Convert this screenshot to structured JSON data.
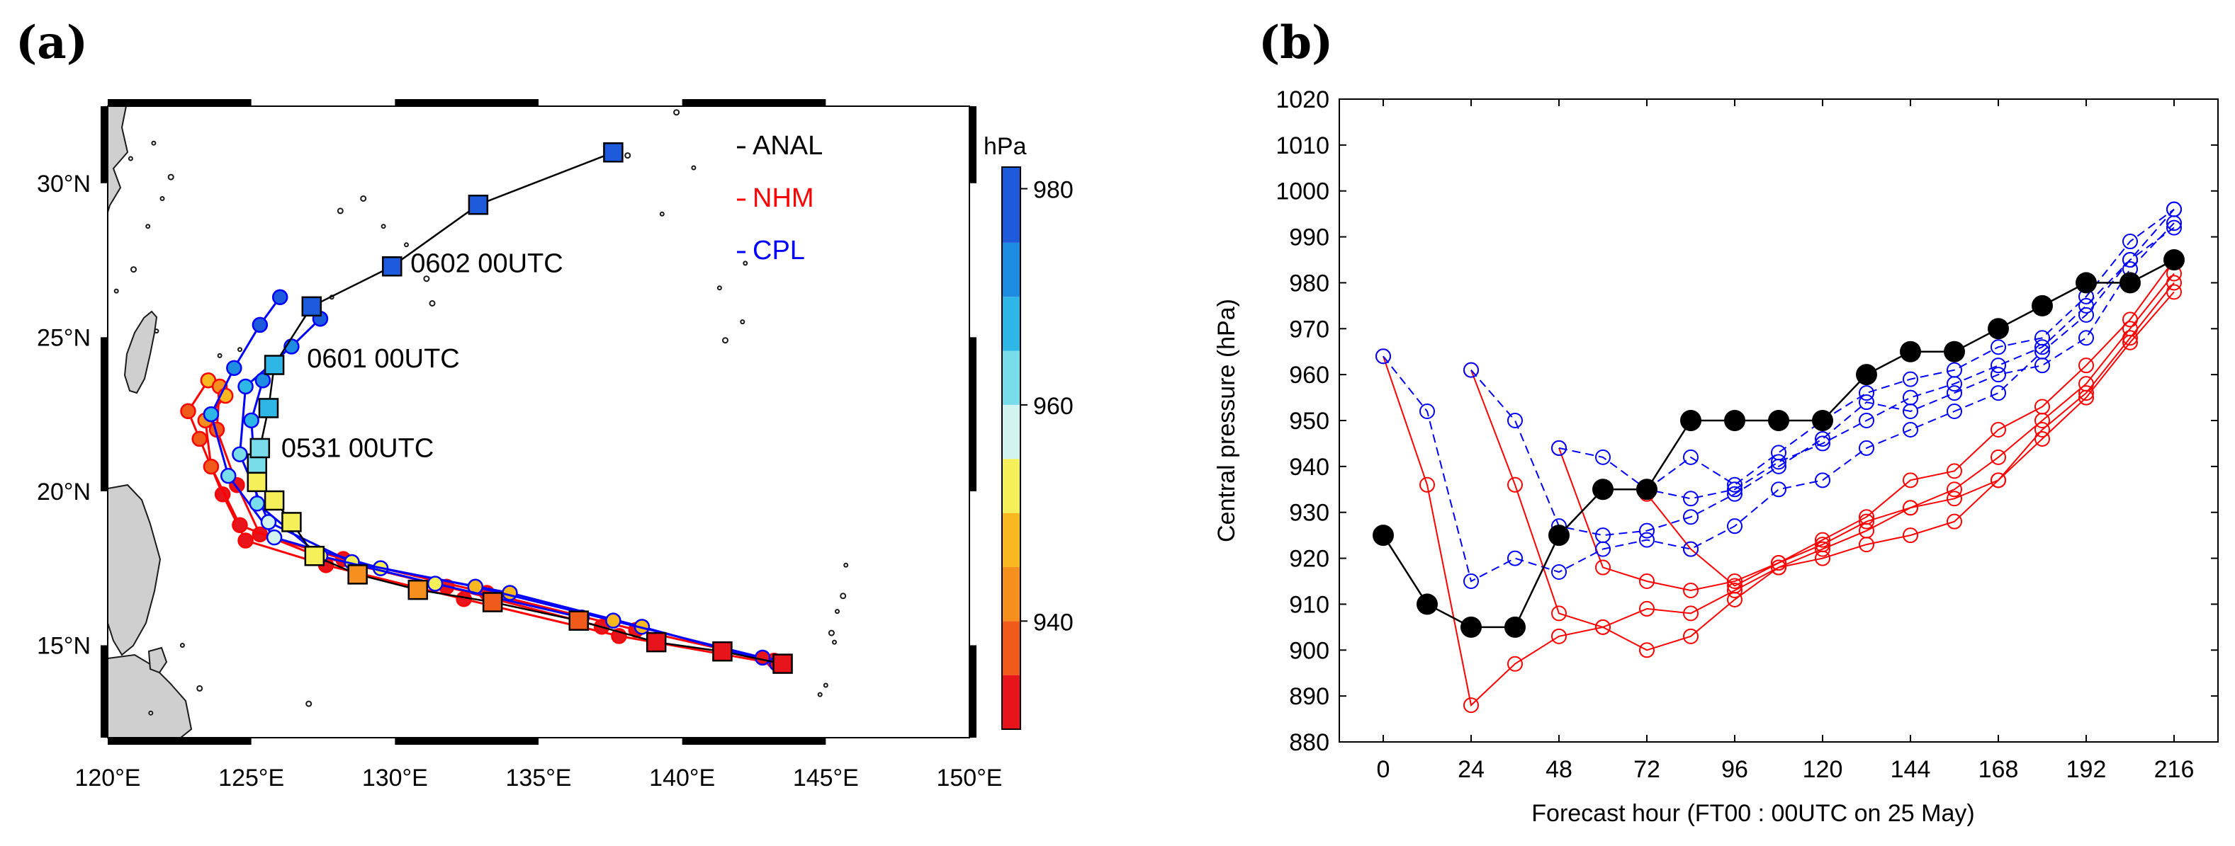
{
  "chart_data": [
    {
      "panel": "(a)",
      "type": "scatter",
      "title": "",
      "xlabel": "",
      "ylabel": "",
      "xlim": [
        120,
        150
      ],
      "ylim": [
        12,
        32.5
      ],
      "x_ticks": [
        {
          "value": 120,
          "label": "120°E"
        },
        {
          "value": 125,
          "label": "125°E"
        },
        {
          "value": 130,
          "label": "130°E"
        },
        {
          "value": 135,
          "label": "135°E"
        },
        {
          "value": 140,
          "label": "140°E"
        },
        {
          "value": 145,
          "label": "145°E"
        },
        {
          "value": 150,
          "label": "150°E"
        }
      ],
      "y_ticks": [
        {
          "value": 15,
          "label": "15°N"
        },
        {
          "value": 20,
          "label": "20°N"
        },
        {
          "value": 25,
          "label": "25°N"
        },
        {
          "value": 30,
          "label": "30°N"
        }
      ],
      "legend": {
        "position": "top-right",
        "items": [
          {
            "label": "ANAL",
            "color": "#000000"
          },
          {
            "label": "NHM",
            "color": "#ff0000"
          },
          {
            "label": "CPL",
            "color": "#0000ff"
          }
        ]
      },
      "colorbar": {
        "title": "hPa",
        "range": [
          930,
          982
        ],
        "ticks": [
          940,
          960,
          980
        ],
        "bins": [
          {
            "from": 930,
            "to": 935,
            "color": "#e8141c"
          },
          {
            "from": 935,
            "to": 940,
            "color": "#f05a1a"
          },
          {
            "from": 940,
            "to": 945,
            "color": "#f5901e"
          },
          {
            "from": 945,
            "to": 950,
            "color": "#fab820"
          },
          {
            "from": 950,
            "to": 955,
            "color": "#f5f05a"
          },
          {
            "from": 955,
            "to": 960,
            "color": "#d2f4f0"
          },
          {
            "from": 960,
            "to": 965,
            "color": "#78dceb"
          },
          {
            "from": 965,
            "to": 970,
            "color": "#2eb6e6"
          },
          {
            "from": 970,
            "to": 975,
            "color": "#1e8ce0"
          },
          {
            "from": 975,
            "to": 982,
            "color": "#1e5adc"
          }
        ]
      },
      "annotations": [
        {
          "text": "0602 00UTC",
          "lon": 129.8,
          "lat": 27.3
        },
        {
          "text": "0601 00UTC",
          "lon": 126.2,
          "lat": 24.2
        },
        {
          "text": "0531 00UTC",
          "lon": 125.3,
          "lat": 21.3
        }
      ],
      "series": [
        {
          "name": "ANAL",
          "line_color": "#000000",
          "marker": "square",
          "points": [
            {
              "lon": 143.5,
              "lat": 14.4,
              "p": 932
            },
            {
              "lon": 141.4,
              "lat": 14.8,
              "p": 932
            },
            {
              "lon": 139.1,
              "lat": 15.1,
              "p": 932
            },
            {
              "lon": 136.4,
              "lat": 15.8,
              "p": 935
            },
            {
              "lon": 133.4,
              "lat": 16.4,
              "p": 935
            },
            {
              "lon": 130.8,
              "lat": 16.8,
              "p": 940
            },
            {
              "lon": 128.7,
              "lat": 17.3,
              "p": 942
            },
            {
              "lon": 127.2,
              "lat": 17.9,
              "p": 950
            },
            {
              "lon": 126.4,
              "lat": 19.0,
              "p": 950
            },
            {
              "lon": 125.8,
              "lat": 19.7,
              "p": 950
            },
            {
              "lon": 125.2,
              "lat": 20.3,
              "p": 950
            },
            {
              "lon": 125.2,
              "lat": 20.9,
              "p": 960
            },
            {
              "lon": 125.3,
              "lat": 21.4,
              "p": 960
            },
            {
              "lon": 125.6,
              "lat": 22.7,
              "p": 965
            },
            {
              "lon": 125.8,
              "lat": 24.1,
              "p": 965
            },
            {
              "lon": 127.1,
              "lat": 26.0,
              "p": 975
            },
            {
              "lon": 129.9,
              "lat": 27.3,
              "p": 978
            },
            {
              "lon": 132.9,
              "lat": 29.3,
              "p": 980
            },
            {
              "lon": 137.6,
              "lat": 31.0,
              "p": 982
            }
          ]
        },
        {
          "name": "NHM",
          "line_color": "#ff0000",
          "marker": "circle",
          "points": [
            {
              "lon": 143.3,
              "lat": 14.4,
              "p": 932
            },
            {
              "lon": 137.8,
              "lat": 15.3,
              "p": 930
            },
            {
              "lon": 132.4,
              "lat": 16.5,
              "p": 932
            },
            {
              "lon": 127.6,
              "lat": 17.6,
              "p": 931
            },
            {
              "lon": 124.8,
              "lat": 18.4,
              "p": 930
            },
            {
              "lon": 124.0,
              "lat": 19.9,
              "p": 932
            },
            {
              "lon": 123.2,
              "lat": 21.7,
              "p": 935
            },
            {
              "lon": 122.8,
              "lat": 22.6,
              "p": 938
            },
            {
              "lon": 123.5,
              "lat": 23.6,
              "p": 945
            }
          ]
        },
        {
          "name": "NHM",
          "line_color": "#ff0000",
          "marker": "circle",
          "points": [
            {
              "lon": 143.2,
              "lat": 14.5,
              "p": 932
            },
            {
              "lon": 138.4,
              "lat": 15.5,
              "p": 931
            },
            {
              "lon": 133.2,
              "lat": 16.7,
              "p": 931
            },
            {
              "lon": 128.2,
              "lat": 17.8,
              "p": 932
            },
            {
              "lon": 125.3,
              "lat": 18.6,
              "p": 932
            },
            {
              "lon": 124.5,
              "lat": 20.2,
              "p": 934
            },
            {
              "lon": 123.8,
              "lat": 22.0,
              "p": 938
            },
            {
              "lon": 123.9,
              "lat": 23.4,
              "p": 942
            }
          ]
        },
        {
          "name": "NHM",
          "line_color": "#ff0000",
          "marker": "circle",
          "points": [
            {
              "lon": 137.2,
              "lat": 15.6,
              "p": 932
            },
            {
              "lon": 131.8,
              "lat": 16.9,
              "p": 931
            },
            {
              "lon": 127.3,
              "lat": 17.9,
              "p": 933
            },
            {
              "lon": 124.6,
              "lat": 18.9,
              "p": 933
            },
            {
              "lon": 123.6,
              "lat": 20.8,
              "p": 936
            },
            {
              "lon": 123.4,
              "lat": 22.3,
              "p": 940
            },
            {
              "lon": 124.1,
              "lat": 23.1,
              "p": 948
            }
          ]
        },
        {
          "name": "CPL",
          "line_color": "#0000ff",
          "marker": "circle",
          "points": [
            {
              "lon": 143.3,
              "lat": 14.4,
              "p": 932
            },
            {
              "lon": 138.6,
              "lat": 15.6,
              "p": 945
            },
            {
              "lon": 134.0,
              "lat": 16.7,
              "p": 948
            },
            {
              "lon": 129.5,
              "lat": 17.5,
              "p": 950
            },
            {
              "lon": 125.8,
              "lat": 18.5,
              "p": 955
            },
            {
              "lon": 124.2,
              "lat": 20.5,
              "p": 960
            },
            {
              "lon": 123.6,
              "lat": 22.5,
              "p": 965
            },
            {
              "lon": 124.4,
              "lat": 24.0,
              "p": 970
            },
            {
              "lon": 125.3,
              "lat": 25.4,
              "p": 975
            },
            {
              "lon": 126.0,
              "lat": 26.3,
              "p": 978
            }
          ]
        },
        {
          "name": "CPL",
          "line_color": "#0000ff",
          "marker": "circle",
          "points": [
            {
              "lon": 142.8,
              "lat": 14.6,
              "p": 933
            },
            {
              "lon": 137.6,
              "lat": 15.8,
              "p": 946
            },
            {
              "lon": 132.8,
              "lat": 16.9,
              "p": 949
            },
            {
              "lon": 128.5,
              "lat": 17.7,
              "p": 952
            },
            {
              "lon": 125.6,
              "lat": 19.0,
              "p": 958
            },
            {
              "lon": 124.6,
              "lat": 21.2,
              "p": 962
            },
            {
              "lon": 124.8,
              "lat": 23.4,
              "p": 968
            },
            {
              "lon": 126.4,
              "lat": 24.7,
              "p": 972
            },
            {
              "lon": 127.4,
              "lat": 25.6,
              "p": 976
            }
          ]
        },
        {
          "name": "CPL",
          "line_color": "#0000ff",
          "marker": "circle",
          "points": [
            {
              "lon": 136.5,
              "lat": 15.9,
              "p": 945
            },
            {
              "lon": 131.4,
              "lat": 17.0,
              "p": 950
            },
            {
              "lon": 127.4,
              "lat": 17.9,
              "p": 954
            },
            {
              "lon": 125.2,
              "lat": 19.6,
              "p": 960
            },
            {
              "lon": 125.0,
              "lat": 22.3,
              "p": 966
            },
            {
              "lon": 125.4,
              "lat": 23.6,
              "p": 970
            }
          ]
        }
      ]
    },
    {
      "panel": "(b)",
      "type": "line",
      "title": "",
      "xlabel": "Forecast hour  (FT00 : 00UTC on 25 May)",
      "ylabel": "Central pressure (hPa)",
      "xlim": [
        -12,
        228
      ],
      "ylim": [
        880,
        1020
      ],
      "x_ticks": [
        0,
        24,
        48,
        72,
        96,
        120,
        144,
        168,
        192,
        216
      ],
      "y_ticks": [
        880,
        890,
        900,
        910,
        920,
        930,
        940,
        950,
        960,
        970,
        980,
        990,
        1000,
        1010,
        1020
      ],
      "series": [
        {
          "name": "ANAL",
          "color": "#000000",
          "style": "solid",
          "marker": "filled-circle",
          "x": [
            0,
            12,
            24,
            36,
            48,
            60,
            72,
            84,
            96,
            108,
            120,
            132,
            144,
            156,
            168,
            180,
            192,
            204,
            216
          ],
          "y": [
            925,
            910,
            905,
            905,
            925,
            935,
            935,
            950,
            950,
            950,
            950,
            960,
            965,
            965,
            970,
            975,
            980,
            980,
            985
          ]
        },
        {
          "name": "NHM",
          "color": "#ff0000",
          "style": "solid",
          "marker": "open-circle",
          "x": [
            0,
            12,
            24,
            36,
            48,
            60,
            72,
            84,
            96,
            108,
            120,
            132,
            144,
            156,
            168,
            180,
            192,
            204,
            216
          ],
          "y": [
            964,
            936,
            888,
            897,
            903,
            905,
            900,
            903,
            911,
            918,
            920,
            923,
            925,
            928,
            937,
            946,
            955,
            967,
            978
          ]
        },
        {
          "name": "NHM",
          "color": "#ff0000",
          "style": "solid",
          "marker": "open-circle",
          "x": [
            24,
            36,
            48,
            60,
            72,
            84,
            96,
            108,
            120,
            132,
            144,
            156,
            168,
            180,
            192,
            204,
            216
          ],
          "y": [
            961,
            936,
            908,
            905,
            909,
            908,
            913,
            918,
            922,
            926,
            931,
            933,
            937,
            948,
            956,
            968,
            980
          ]
        },
        {
          "name": "NHM",
          "color": "#ff0000",
          "style": "solid",
          "marker": "open-circle",
          "x": [
            48,
            60,
            72,
            84,
            96,
            108,
            120,
            132,
            144,
            156,
            168,
            180,
            192,
            204,
            216
          ],
          "y": [
            944,
            918,
            915,
            913,
            915,
            919,
            923,
            928,
            931,
            935,
            942,
            950,
            958,
            970,
            982
          ]
        },
        {
          "name": "NHM",
          "color": "#ff0000",
          "style": "solid",
          "marker": "open-circle",
          "x": [
            72,
            84,
            96,
            108,
            120,
            132,
            144,
            156,
            168,
            180,
            192,
            204,
            216
          ],
          "y": [
            934,
            922,
            914,
            919,
            924,
            929,
            937,
            939,
            948,
            953,
            962,
            972,
            985
          ]
        },
        {
          "name": "CPL",
          "color": "#0000ff",
          "style": "dashed",
          "marker": "open-circle",
          "x": [
            0,
            12,
            24,
            36,
            48,
            60,
            72,
            84,
            96,
            108,
            120,
            132,
            144,
            156,
            168,
            180,
            192,
            204,
            216
          ],
          "y": [
            964,
            952,
            915,
            920,
            917,
            922,
            924,
            922,
            927,
            935,
            937,
            944,
            948,
            952,
            956,
            965,
            973,
            985,
            996
          ]
        },
        {
          "name": "CPL",
          "color": "#0000ff",
          "style": "dashed",
          "marker": "open-circle",
          "x": [
            24,
            36,
            48,
            60,
            72,
            84,
            96,
            108,
            120,
            132,
            144,
            156,
            168,
            180,
            192,
            204,
            216
          ],
          "y": [
            961,
            950,
            927,
            925,
            926,
            929,
            934,
            940,
            946,
            954,
            952,
            956,
            960,
            962,
            968,
            983,
            993
          ]
        },
        {
          "name": "CPL",
          "color": "#0000ff",
          "style": "dashed",
          "marker": "open-circle",
          "x": [
            48,
            60,
            72,
            84,
            96,
            108,
            120,
            132,
            144,
            156,
            168,
            180,
            192,
            204,
            216
          ],
          "y": [
            944,
            942,
            935,
            933,
            935,
            941,
            945,
            950,
            955,
            958,
            962,
            966,
            975,
            985,
            992
          ]
        },
        {
          "name": "CPL",
          "color": "#0000ff",
          "style": "dashed",
          "marker": "open-circle",
          "x": [
            72,
            84,
            96,
            108,
            120,
            132,
            144,
            156,
            168,
            180,
            192,
            204,
            216
          ],
          "y": [
            935,
            942,
            936,
            943,
            950,
            956,
            959,
            961,
            966,
            968,
            977,
            989,
            996
          ]
        }
      ]
    }
  ]
}
